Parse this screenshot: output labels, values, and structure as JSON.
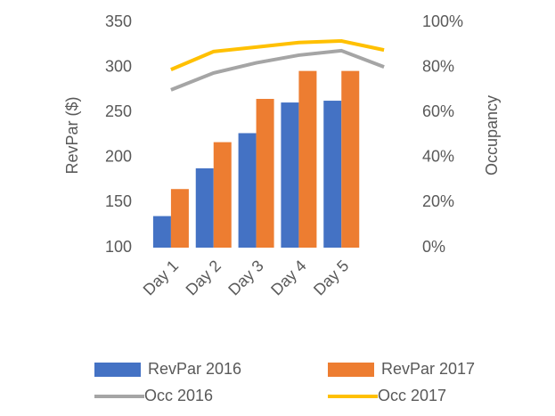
{
  "chart_data": {
    "type": "bar-line",
    "categories": [
      "Day 1",
      "Day 2",
      "Day 3",
      "Day 4",
      "Day 5",
      null
    ],
    "y_label": "RevPar ($)",
    "y2_label": "Occupancy",
    "ylim": [
      100,
      350
    ],
    "yticks": [
      100,
      150,
      200,
      250,
      300,
      350
    ],
    "y2lim": [
      0,
      100
    ],
    "y2ticks": [
      {
        "value": 0,
        "label": "0%"
      },
      {
        "value": 20,
        "label": "20%"
      },
      {
        "value": 40,
        "label": "40%"
      },
      {
        "value": 60,
        "label": "60%"
      },
      {
        "value": 80,
        "label": "80%"
      },
      {
        "value": 100,
        "label": "100%"
      }
    ],
    "grid": false,
    "legend": "bottom",
    "series": [
      {
        "name": "RevPar 2016",
        "type": "bar",
        "color": "#4472c4",
        "values": [
          135,
          188,
          227,
          261,
          263,
          null
        ]
      },
      {
        "name": "RevPar 2017",
        "type": "bar",
        "color": "#ed7d31",
        "values": [
          165,
          217,
          265,
          296,
          296,
          null
        ]
      },
      {
        "name": "Occ 2016",
        "type": "line",
        "axis": "y2",
        "color": "#a5a5a5",
        "values": [
          70,
          77.5,
          82,
          85.4,
          87.4,
          80.2
        ]
      },
      {
        "name": "Occ 2017",
        "type": "line",
        "axis": "y2",
        "color": "#ffc000",
        "values": [
          79,
          87,
          89,
          91,
          91.7,
          87.7
        ]
      }
    ]
  }
}
